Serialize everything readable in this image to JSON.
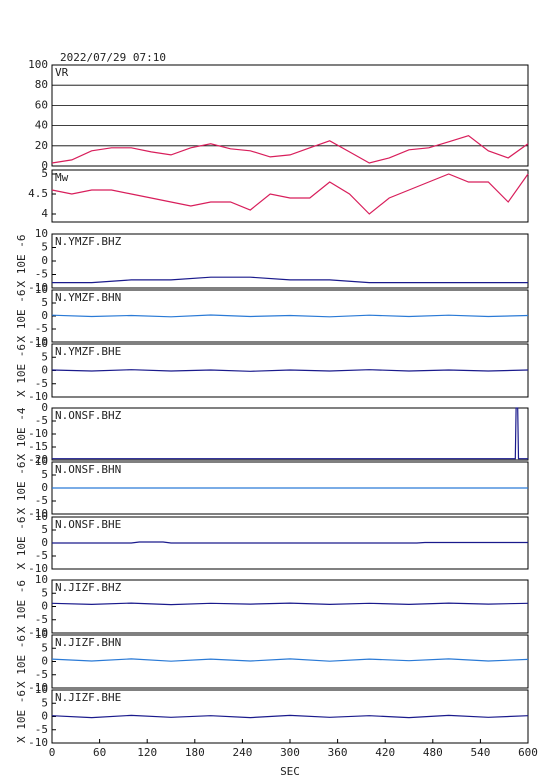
{
  "chart_data": [
    {
      "type": "line",
      "title": "2022/07/29 07:10",
      "grid": true,
      "x": [
        0,
        25,
        50,
        75,
        100,
        125,
        150,
        175,
        200,
        225,
        250,
        275,
        300,
        325,
        350,
        375,
        400,
        425,
        450,
        475,
        500,
        525,
        550,
        575,
        600
      ],
      "series": [
        {
          "name": "VR",
          "color": "#d81e5b",
          "values": [
            3,
            6,
            15,
            18,
            18,
            14,
            11,
            18,
            22,
            17,
            15,
            9,
            11,
            18,
            25,
            14,
            3,
            8,
            16,
            18,
            24,
            30,
            15,
            8,
            22
          ]
        }
      ],
      "xlim": [
        0,
        600
      ],
      "ylim": [
        0,
        100
      ],
      "yticks": [
        0,
        20,
        40,
        60,
        80,
        100
      ]
    },
    {
      "type": "line",
      "x": [
        0,
        25,
        50,
        75,
        100,
        125,
        150,
        175,
        200,
        225,
        250,
        275,
        300,
        325,
        350,
        375,
        400,
        425,
        450,
        475,
        500,
        525,
        550,
        575,
        600
      ],
      "series": [
        {
          "name": "Mw",
          "color": "#d81e5b",
          "values": [
            4.6,
            4.5,
            4.6,
            4.6,
            4.5,
            4.4,
            4.3,
            4.2,
            4.3,
            4.3,
            4.1,
            4.5,
            4.4,
            4.4,
            4.8,
            4.5,
            4.0,
            4.4,
            4.6,
            4.8,
            5.0,
            4.8,
            4.8,
            4.3,
            5.0
          ]
        }
      ],
      "xlim": [
        0,
        600
      ],
      "ylim": [
        3.8,
        5.1
      ],
      "yticks": [
        4.0,
        4.5,
        5.0
      ]
    },
    {
      "type": "line",
      "ylabel": "X 10E -6",
      "x": [
        0,
        50,
        100,
        150,
        200,
        250,
        300,
        350,
        400,
        450,
        500,
        550,
        600
      ],
      "series": [
        {
          "name": "N.YMZF.BHZ",
          "color": "#1a1a8c",
          "values": [
            -8,
            -8,
            -7,
            -7,
            -6,
            -6,
            -7,
            -7,
            -8,
            -8,
            -8,
            -8,
            -8
          ]
        }
      ],
      "xlim": [
        0,
        600
      ],
      "ylim": [
        -10,
        10
      ],
      "yticks": [
        -10,
        -5,
        0,
        5,
        10
      ]
    },
    {
      "type": "line",
      "ylabel": "X 10E -6",
      "x": [
        0,
        50,
        100,
        150,
        200,
        250,
        300,
        350,
        400,
        450,
        500,
        550,
        600
      ],
      "series": [
        {
          "name": "N.YMZF.BHN",
          "color": "#2a7ad6",
          "values": [
            0.3,
            -0.2,
            0.2,
            -0.3,
            0.4,
            -0.2,
            0.2,
            -0.3,
            0.3,
            -0.2,
            0.3,
            -0.2,
            0.2
          ]
        }
      ],
      "xlim": [
        0,
        600
      ],
      "ylim": [
        -10,
        10
      ],
      "yticks": [
        -10,
        -5,
        0,
        5,
        10
      ]
    },
    {
      "type": "line",
      "ylabel": "X 10E -6",
      "x": [
        0,
        50,
        100,
        150,
        200,
        250,
        300,
        350,
        400,
        450,
        500,
        550,
        600
      ],
      "series": [
        {
          "name": "N.YMZF.BHE",
          "color": "#1a1a8c",
          "values": [
            0.2,
            -0.2,
            0.3,
            -0.2,
            0.2,
            -0.3,
            0.2,
            -0.2,
            0.3,
            -0.2,
            0.2,
            -0.2,
            0.2
          ]
        }
      ],
      "xlim": [
        0,
        600
      ],
      "ylim": [
        -10,
        10
      ],
      "yticks": [
        -10,
        -5,
        0,
        5,
        10
      ]
    },
    {
      "type": "line",
      "ylabel": "X 10E -4",
      "x": [
        0,
        100,
        200,
        300,
        400,
        500,
        584,
        585,
        587,
        588,
        600
      ],
      "series": [
        {
          "name": "N.ONSF.BHZ",
          "color": "#1a1a8c",
          "values": [
            -19.5,
            -19.5,
            -19.5,
            -19.5,
            -19.5,
            -19.5,
            -19.5,
            0,
            0,
            -19.5,
            -19.5
          ]
        }
      ],
      "xlim": [
        0,
        600
      ],
      "ylim": [
        -20,
        0
      ],
      "yticks": [
        0,
        -5,
        -10,
        -15,
        -20
      ]
    },
    {
      "type": "line",
      "ylabel": "X 10E -6",
      "x": [
        0,
        100,
        200,
        300,
        400,
        500,
        600
      ],
      "series": [
        {
          "name": "N.ONSF.BHN",
          "color": "#2a7ad6",
          "values": [
            0,
            0,
            0,
            0,
            0,
            0,
            0
          ]
        }
      ],
      "xlim": [
        0,
        600
      ],
      "ylim": [
        -10,
        10
      ],
      "yticks": [
        -10,
        -5,
        0,
        5,
        10
      ]
    },
    {
      "type": "line",
      "ylabel": "X 10E -6",
      "x": [
        0,
        100,
        110,
        140,
        150,
        300,
        460,
        470,
        600
      ],
      "series": [
        {
          "name": "N.ONSF.BHE",
          "color": "#1a1a8c",
          "values": [
            0,
            0,
            0.4,
            0.4,
            0,
            0,
            0,
            0.2,
            0.2
          ]
        }
      ],
      "xlim": [
        0,
        600
      ],
      "ylim": [
        -10,
        10
      ],
      "yticks": [
        -10,
        -5,
        0,
        5,
        10
      ]
    },
    {
      "type": "line",
      "ylabel": "X 10E -6",
      "x": [
        0,
        50,
        100,
        150,
        200,
        250,
        300,
        350,
        400,
        450,
        500,
        550,
        600
      ],
      "series": [
        {
          "name": "N.JIZF.BHZ",
          "color": "#1a1a8c",
          "values": [
            1.2,
            0.8,
            1.3,
            0.7,
            1.2,
            0.9,
            1.3,
            0.8,
            1.2,
            0.8,
            1.3,
            0.9,
            1.2
          ]
        }
      ],
      "xlim": [
        0,
        600
      ],
      "ylim": [
        -10,
        10
      ],
      "yticks": [
        -10,
        -5,
        0,
        5,
        10
      ]
    },
    {
      "type": "line",
      "ylabel": "X 10E -6",
      "x": [
        0,
        50,
        100,
        150,
        200,
        250,
        300,
        350,
        400,
        450,
        500,
        550,
        600
      ],
      "series": [
        {
          "name": "N.JIZF.BHN",
          "color": "#2a7ad6",
          "values": [
            0.9,
            0.2,
            1.0,
            0.1,
            0.9,
            0.2,
            1.0,
            0.1,
            0.9,
            0.3,
            1.0,
            0.2,
            0.8
          ]
        }
      ],
      "xlim": [
        0,
        600
      ],
      "ylim": [
        -10,
        10
      ],
      "yticks": [
        -10,
        -5,
        0,
        5,
        10
      ]
    },
    {
      "type": "line",
      "ylabel": "X 10E -6",
      "x": [
        0,
        50,
        100,
        150,
        200,
        250,
        300,
        350,
        400,
        450,
        500,
        550,
        600
      ],
      "series": [
        {
          "name": "N.JIZF.BHE",
          "color": "#1a1a8c",
          "values": [
            0.3,
            -0.4,
            0.4,
            -0.3,
            0.3,
            -0.4,
            0.4,
            -0.3,
            0.3,
            -0.4,
            0.4,
            -0.3,
            0.3
          ]
        }
      ],
      "xlim": [
        0,
        600
      ],
      "ylim": [
        -10,
        10
      ],
      "yticks": [
        -10,
        -5,
        0,
        5,
        10
      ],
      "xticks": [
        0,
        60,
        120,
        180,
        240,
        300,
        360,
        420,
        480,
        540,
        600
      ],
      "xlabel": "SEC"
    }
  ]
}
